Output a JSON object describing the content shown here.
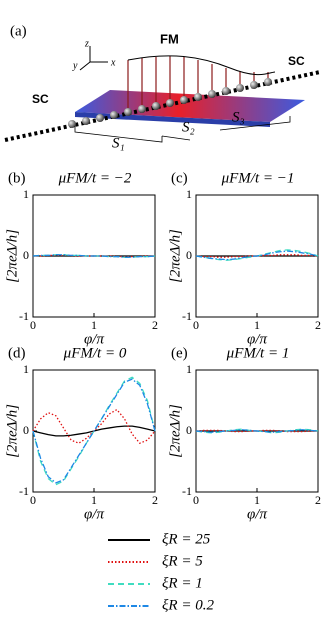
{
  "schematic": {
    "label": "(a)",
    "fm": "FM",
    "sc_left": "SC",
    "sc_right": "SC",
    "s1": "S₁",
    "s2": "S₂",
    "s3": "S₃",
    "axis_x": "x",
    "axis_y": "y",
    "axis_z": "z"
  },
  "legend": [
    "ξR = 25",
    "ξR = 5",
    "ξR = 1",
    "ξR = 0.2"
  ],
  "chart_data": [
    {
      "type": "line",
      "label": "(b)",
      "title": "μFM/t = −2",
      "xlabel": "φ/π",
      "ylabel": "[2πeΔ/h]",
      "xlim": [
        0,
        2
      ],
      "xticks": [
        0,
        1,
        2
      ],
      "ylim": [
        -1,
        1
      ],
      "yticks": [
        -1,
        0,
        1
      ],
      "x": [
        0,
        0.125,
        0.25,
        0.375,
        0.5,
        0.625,
        0.75,
        0.875,
        1,
        1.125,
        1.25,
        1.375,
        1.5,
        1.625,
        1.75,
        1.875,
        2
      ],
      "series": [
        {
          "color": "#000000",
          "style": "solid",
          "values": [
            0,
            0,
            0,
            0,
            0,
            0,
            0,
            0,
            0,
            0,
            0,
            0,
            0,
            0,
            0,
            0,
            0
          ]
        },
        {
          "color": "#e01010",
          "style": "dotted",
          "values": [
            0,
            0,
            0.01,
            0.01,
            0.01,
            0.01,
            0,
            0,
            0,
            0,
            0,
            -0.01,
            -0.01,
            -0.01,
            -0.01,
            0,
            0
          ]
        },
        {
          "color": "#3fdcc0",
          "style": "dashed",
          "values": [
            0,
            0.01,
            0.01,
            0.02,
            0.02,
            0.01,
            0.01,
            0,
            0,
            0,
            -0.01,
            -0.01,
            -0.02,
            -0.02,
            -0.01,
            -0.01,
            0
          ]
        },
        {
          "color": "#1e88e5",
          "style": "dashdot",
          "values": [
            0,
            0.01,
            0.01,
            0.02,
            0.02,
            0.01,
            0.01,
            0,
            0,
            0,
            -0.01,
            -0.01,
            -0.02,
            -0.02,
            -0.01,
            -0.01,
            0
          ]
        }
      ]
    },
    {
      "type": "line",
      "label": "(c)",
      "title": "μFM/t = −1",
      "xlabel": "φ/π",
      "ylabel": "[2πeΔ/h]",
      "xlim": [
        0,
        2
      ],
      "xticks": [
        0,
        1,
        2
      ],
      "ylim": [
        -1,
        1
      ],
      "yticks": [
        -1,
        0,
        1
      ],
      "x": [
        0,
        0.125,
        0.25,
        0.375,
        0.5,
        0.625,
        0.75,
        0.875,
        1,
        1.125,
        1.25,
        1.375,
        1.5,
        1.625,
        1.75,
        1.875,
        2
      ],
      "series": [
        {
          "color": "#000000",
          "style": "solid",
          "values": [
            0,
            0,
            0,
            0,
            0,
            0,
            0,
            0,
            0,
            0,
            0,
            0,
            0,
            0,
            0,
            0,
            0
          ]
        },
        {
          "color": "#e01010",
          "style": "dotted",
          "values": [
            0,
            -0.01,
            -0.01,
            -0.02,
            -0.02,
            -0.01,
            -0.01,
            0,
            0,
            0.01,
            0.01,
            0.02,
            0.02,
            0.02,
            0.01,
            0.01,
            0
          ]
        },
        {
          "color": "#3fdcc0",
          "style": "dashed",
          "values": [
            0,
            -0.02,
            -0.04,
            -0.06,
            -0.07,
            -0.06,
            -0.04,
            -0.02,
            0,
            0.03,
            0.06,
            0.09,
            0.1,
            0.09,
            0.07,
            0.04,
            0
          ]
        },
        {
          "color": "#1e88e5",
          "style": "dashdot",
          "values": [
            0,
            -0.02,
            -0.04,
            -0.05,
            -0.06,
            -0.05,
            -0.03,
            -0.01,
            0,
            0.02,
            0.05,
            0.07,
            0.08,
            0.07,
            0.05,
            0.03,
            0
          ]
        }
      ]
    },
    {
      "type": "line",
      "label": "(d)",
      "title": "μFM/t = 0",
      "xlabel": "φ/π",
      "ylabel": "[2πeΔ/h]",
      "xlim": [
        0,
        2
      ],
      "xticks": [
        0,
        1,
        2
      ],
      "ylim": [
        -1,
        1
      ],
      "yticks": [
        -1,
        0,
        1
      ],
      "x": [
        0,
        0.125,
        0.25,
        0.375,
        0.5,
        0.625,
        0.75,
        0.875,
        1,
        1.125,
        1.25,
        1.375,
        1.5,
        1.625,
        1.75,
        1.875,
        2
      ],
      "series": [
        {
          "color": "#000000",
          "style": "solid",
          "values": [
            0,
            -0.03,
            -0.06,
            -0.08,
            -0.08,
            -0.07,
            -0.05,
            -0.03,
            0,
            0.03,
            0.05,
            0.07,
            0.08,
            0.08,
            0.06,
            0.03,
            0
          ]
        },
        {
          "color": "#e01010",
          "style": "dotted",
          "values": [
            0,
            0.2,
            0.3,
            0.25,
            0.05,
            -0.15,
            -0.2,
            -0.12,
            0,
            0.12,
            0.28,
            0.35,
            0.2,
            -0.05,
            -0.2,
            -0.15,
            0
          ]
        },
        {
          "color": "#3fdcc0",
          "style": "dashed",
          "values": [
            0,
            -0.5,
            -0.78,
            -0.88,
            -0.82,
            -0.62,
            -0.42,
            -0.2,
            0,
            0.2,
            0.42,
            0.62,
            0.82,
            0.88,
            0.78,
            0.5,
            0
          ]
        },
        {
          "color": "#1e88e5",
          "style": "dashdot",
          "values": [
            0,
            -0.45,
            -0.75,
            -0.85,
            -0.8,
            -0.6,
            -0.4,
            -0.2,
            0,
            0.2,
            0.4,
            0.6,
            0.8,
            0.85,
            0.75,
            0.45,
            0
          ]
        }
      ]
    },
    {
      "type": "line",
      "label": "(e)",
      "title": "μFM/t = 1",
      "xlabel": "φ/π",
      "ylabel": "[2πeΔ/h]",
      "xlim": [
        0,
        2
      ],
      "xticks": [
        0,
        1,
        2
      ],
      "ylim": [
        -1,
        1
      ],
      "yticks": [
        -1,
        0,
        1
      ],
      "x": [
        0,
        0.125,
        0.25,
        0.375,
        0.5,
        0.625,
        0.75,
        0.875,
        1,
        1.125,
        1.25,
        1.375,
        1.5,
        1.625,
        1.75,
        1.875,
        2
      ],
      "series": [
        {
          "color": "#000000",
          "style": "solid",
          "values": [
            0,
            0,
            0,
            0,
            0,
            0,
            0,
            0,
            0,
            0,
            0,
            0,
            0,
            0,
            0,
            0,
            0
          ]
        },
        {
          "color": "#e01010",
          "style": "dotted",
          "values": [
            0,
            0.01,
            0.01,
            0.01,
            0,
            -0.01,
            -0.01,
            0,
            0,
            0.01,
            0.01,
            0,
            -0.01,
            -0.01,
            -0.01,
            0,
            0
          ]
        },
        {
          "color": "#3fdcc0",
          "style": "dashed",
          "values": [
            0,
            -0.02,
            -0.03,
            -0.02,
            0,
            0.02,
            0.03,
            0.01,
            0,
            -0.01,
            -0.03,
            -0.02,
            0,
            0.02,
            0.03,
            0.02,
            0
          ]
        },
        {
          "color": "#1e88e5",
          "style": "dashdot",
          "values": [
            0,
            -0.01,
            -0.02,
            -0.01,
            0,
            0.01,
            0.02,
            0.01,
            0,
            -0.01,
            -0.02,
            -0.01,
            0,
            0.01,
            0.02,
            0.01,
            0
          ]
        }
      ]
    }
  ]
}
